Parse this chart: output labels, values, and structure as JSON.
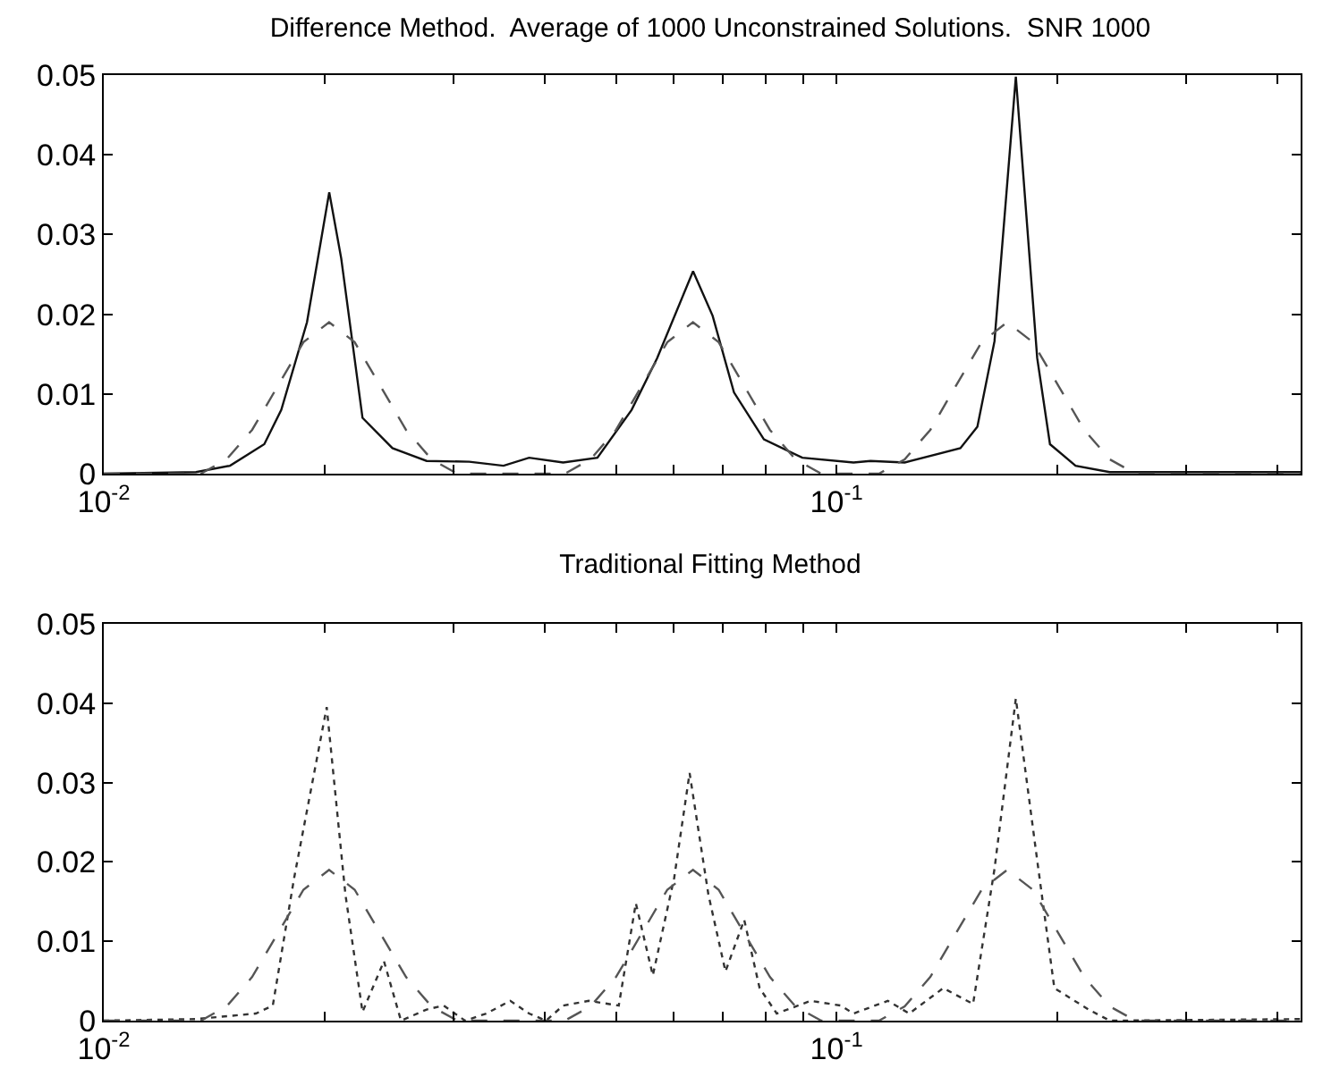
{
  "chart_data": [
    {
      "type": "line",
      "title": "Difference Method.  Average of 1000 Unconstrained Solutions.  SNR 1000",
      "log": "x",
      "grid": false,
      "xlim": [
        0.01,
        0.43
      ],
      "xticks": [
        {
          "value": 0.01,
          "label": "10$^{-2}$"
        },
        {
          "value": 0.02,
          "label": null
        },
        {
          "value": 0.03,
          "label": null
        },
        {
          "value": 0.04,
          "label": null
        },
        {
          "value": 0.05,
          "label": null
        },
        {
          "value": 0.06,
          "label": null
        },
        {
          "value": 0.07,
          "label": null
        },
        {
          "value": 0.08,
          "label": null
        },
        {
          "value": 0.09,
          "label": null
        },
        {
          "value": 0.1,
          "label": "10$^{-1}$"
        },
        {
          "value": 0.2,
          "label": null
        },
        {
          "value": 0.3,
          "label": null
        },
        {
          "value": 0.4,
          "label": null
        }
      ],
      "ylim": [
        0,
        0.05
      ],
      "yticks": [
        0,
        0.01,
        0.02,
        0.03,
        0.04,
        0.05
      ],
      "series": [
        {
          "color": "#111111",
          "line_style": "solid",
          "x": [
            0.01,
            0.01336,
            0.01487,
            0.01656,
            0.01747,
            0.01894,
            0.02031,
            0.02109,
            0.02255,
            0.02477,
            0.02758,
            0.03154,
            0.03512,
            0.03806,
            0.04236,
            0.04717,
            0.05253,
            0.05692,
            0.06372,
            0.06776,
            0.07246,
            0.07961,
            0.08983,
            0.1055,
            0.1113,
            0.1239,
            0.1476,
            0.1557,
            0.1643,
            0.1757,
            0.1879,
            0.1956,
            0.212,
            0.236,
            0.43
          ],
          "values": [
            0,
            0.0002,
            0.001,
            0.0037,
            0.008,
            0.019,
            0.0353,
            0.027,
            0.007,
            0.0032,
            0.0016,
            0.0015,
            0.001,
            0.002,
            0.0014,
            0.002,
            0.008,
            0.0145,
            0.0254,
            0.0198,
            0.0102,
            0.0043,
            0.002,
            0.0014,
            0.0016,
            0.0014,
            0.0032,
            0.0059,
            0.0166,
            0.0498,
            0.0145,
            0.0037,
            0.001,
            0.0002,
            0.0002
          ]
        },
        {
          "color": "#555555",
          "line_style": "dashed",
          "x": [
            0.01,
            0.01357,
            0.01471,
            0.01594,
            0.01728,
            0.01873,
            0.0203,
            0.022,
            0.02385,
            0.02585,
            0.02801,
            0.03037,
            0.04258,
            0.04616,
            0.05002,
            0.05422,
            0.05877,
            0.0637,
            0.06905,
            0.07484,
            0.08112,
            0.0879,
            0.0953,
            0.1143,
            0.1239,
            0.1343,
            0.1455,
            0.1578,
            0.171,
            0.1853,
            0.2009,
            0.2178,
            0.236,
            0.2558,
            0.43
          ],
          "values": [
            0,
            0,
            0.0018,
            0.0055,
            0.011,
            0.0165,
            0.019,
            0.0165,
            0.011,
            0.0055,
            0.0018,
            0,
            0,
            0.0018,
            0.0055,
            0.011,
            0.0165,
            0.019,
            0.0165,
            0.011,
            0.0055,
            0.0018,
            0,
            0,
            0.0018,
            0.0055,
            0.011,
            0.0165,
            0.019,
            0.0165,
            0.011,
            0.0055,
            0.0018,
            0,
            0
          ]
        }
      ]
    },
    {
      "type": "line",
      "title": "Traditional Fitting Method",
      "log": "x",
      "grid": false,
      "xlim": [
        0.01,
        0.43
      ],
      "xticks": [
        {
          "value": 0.01,
          "label": "10$^{-2}$"
        },
        {
          "value": 0.02,
          "label": null
        },
        {
          "value": 0.03,
          "label": null
        },
        {
          "value": 0.04,
          "label": null
        },
        {
          "value": 0.05,
          "label": null
        },
        {
          "value": 0.06,
          "label": null
        },
        {
          "value": 0.07,
          "label": null
        },
        {
          "value": 0.08,
          "label": null
        },
        {
          "value": 0.09,
          "label": null
        },
        {
          "value": 0.1,
          "label": "10$^{-1}$"
        },
        {
          "value": 0.2,
          "label": null
        },
        {
          "value": 0.3,
          "label": null
        },
        {
          "value": 0.4,
          "label": null
        }
      ],
      "ylim": [
        0,
        0.05
      ],
      "yticks": [
        0,
        0.01,
        0.02,
        0.03,
        0.04,
        0.05
      ],
      "series": [
        {
          "color": "#333333",
          "line_style": "dotted",
          "x": [
            0.01,
            0.01336,
            0.01487,
            0.01613,
            0.01701,
            0.01819,
            0.02015,
            0.02137,
            0.02255,
            0.02412,
            0.02545,
            0.02758,
            0.0291,
            0.03112,
            0.03328,
            0.03588,
            0.03806,
            0.04015,
            0.04236,
            0.04592,
            0.05045,
            0.05323,
            0.05615,
            0.06005,
            0.06303,
            0.06686,
            0.07055,
            0.07483,
            0.07854,
            0.08287,
            0.09226,
            0.1013,
            0.1055,
            0.1175,
            0.1257,
            0.1399,
            0.1536,
            0.1643,
            0.1757,
            0.1879,
            0.1983,
            0.2208,
            0.236,
            0.43
          ],
          "values": [
            0,
            0.0002,
            0.0006,
            0.0009,
            0.0019,
            0.018,
            0.0395,
            0.0159,
            0.0011,
            0.0075,
            0,
            0.0014,
            0.0019,
            0,
            0.0009,
            0.0025,
            0.0009,
            0,
            0.0019,
            0.0025,
            0.0019,
            0.0148,
            0.0057,
            0.018,
            0.0312,
            0.0159,
            0.0062,
            0.0127,
            0.0041,
            0.0009,
            0.0025,
            0.0019,
            0.0009,
            0.0025,
            0.0009,
            0.0041,
            0.0021,
            0.0191,
            0.0406,
            0.0202,
            0.0041,
            0.0014,
            0,
            0.0002
          ]
        },
        {
          "color": "#555555",
          "line_style": "dashed",
          "x": [
            0.01,
            0.01357,
            0.01471,
            0.01594,
            0.01728,
            0.01873,
            0.0203,
            0.022,
            0.02385,
            0.02585,
            0.02801,
            0.03037,
            0.04258,
            0.04616,
            0.05002,
            0.05422,
            0.05877,
            0.0637,
            0.06905,
            0.07484,
            0.08112,
            0.0879,
            0.0953,
            0.1143,
            0.1239,
            0.1343,
            0.1455,
            0.1578,
            0.171,
            0.1853,
            0.2009,
            0.2178,
            0.236,
            0.2558,
            0.43
          ],
          "values": [
            0,
            0,
            0.0018,
            0.0055,
            0.011,
            0.0165,
            0.019,
            0.0165,
            0.011,
            0.0055,
            0.0018,
            0,
            0,
            0.0018,
            0.0055,
            0.011,
            0.0165,
            0.019,
            0.0165,
            0.011,
            0.0055,
            0.0018,
            0,
            0,
            0.0018,
            0.0055,
            0.011,
            0.0165,
            0.019,
            0.0165,
            0.011,
            0.0055,
            0.0018,
            0,
            0
          ]
        }
      ]
    }
  ]
}
